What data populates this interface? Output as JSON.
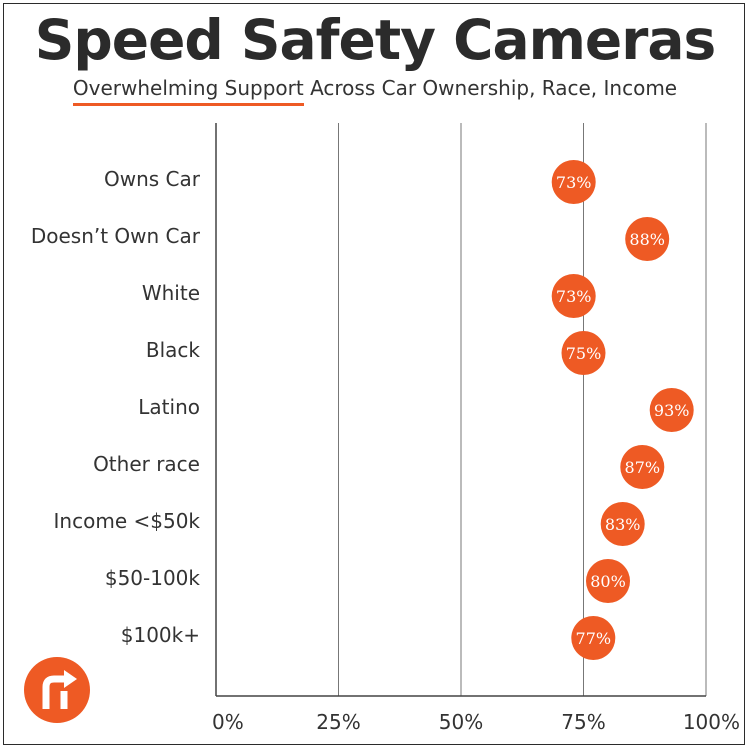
{
  "title": "Speed Safety Cameras",
  "subtitle_highlight": "Overwhelming Support",
  "subtitle_rest": " Across Car Ownership, Race, Income",
  "colors": {
    "accent": "#ee5a24",
    "text": "#333333",
    "axis": "#444444",
    "grid": "#777777"
  },
  "logo_icon": "turn-arrow-logo-icon",
  "chart_data": {
    "type": "scatter",
    "title": "Speed Safety Cameras",
    "subtitle": "Overwhelming Support Across Car Ownership, Race, Income",
    "categories": [
      "Owns Car",
      "Doesn’t Own Car",
      "White",
      "Black",
      "Latino",
      "Other race",
      "Income <$50k",
      "$50-100k",
      "$100k+"
    ],
    "values": [
      73,
      88,
      73,
      75,
      93,
      87,
      83,
      80,
      77
    ],
    "value_labels": [
      "73%",
      "88%",
      "73%",
      "75%",
      "93%",
      "87%",
      "83%",
      "80%",
      "77%"
    ],
    "xlim": [
      0,
      100
    ],
    "x_ticks": [
      0,
      25,
      50,
      75,
      100
    ],
    "x_tick_labels": [
      "0%",
      "25%",
      "50%",
      "75%",
      "100%"
    ],
    "xlabel": "",
    "ylabel": "",
    "grid": true
  }
}
